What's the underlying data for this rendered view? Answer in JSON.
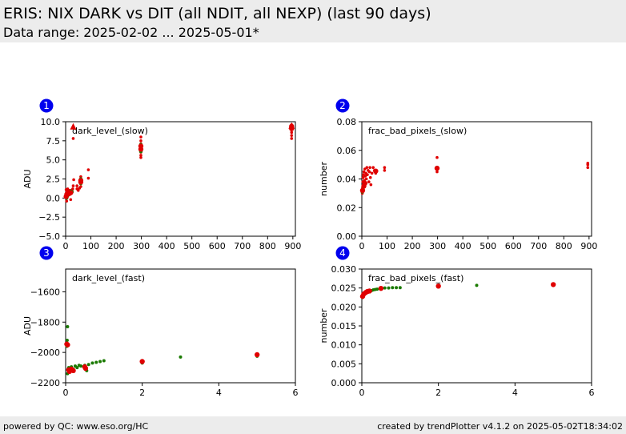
{
  "header": {
    "title": "ERIS: NIX DARK vs DIT (all NDIT, all NEXP) (last 90 days)",
    "subtitle": "Data range: 2025-02-02 ... 2025-05-01*"
  },
  "footer": {
    "left": "powered by QC: www.eso.org/HC",
    "right": "created by trendPlotter v4.1.2 on 2025-05-02T18:34:02"
  },
  "colors": {
    "red": "#e00000",
    "green": "#1a7a00",
    "badge": "#0000ee",
    "outlier": "#e00000"
  },
  "chart_data": [
    {
      "type": "scatter",
      "badge": "1",
      "title": "dark_level_(slow)",
      "ylabel": "ADU",
      "xlim": [
        0,
        910
      ],
      "ylim": [
        -5,
        10
      ],
      "xticks": [
        "0",
        "100",
        "200",
        "300",
        "400",
        "500",
        "600",
        "700",
        "800",
        "900"
      ],
      "xtick_values": [
        0,
        100,
        200,
        300,
        400,
        500,
        600,
        700,
        800,
        900
      ],
      "yticks": [
        "−5.0",
        "−2.5",
        "0.0",
        "2.5",
        "5.0",
        "7.5",
        "10.0"
      ],
      "ytick_values": [
        -5,
        -2.5,
        0,
        2.5,
        5,
        7.5,
        10
      ],
      "series": [
        {
          "color": "red",
          "size": 1.8,
          "points": [
            [
              2,
              1.1
            ],
            [
              3,
              0.4
            ],
            [
              4,
              -0.4
            ],
            [
              5,
              0.9
            ],
            [
              6,
              1.0
            ],
            [
              8,
              1.2
            ],
            [
              10,
              0.5
            ],
            [
              12,
              1.0
            ],
            [
              15,
              0.8
            ],
            [
              18,
              1.0
            ],
            [
              20,
              -0.2
            ],
            [
              22,
              0.6
            ],
            [
              25,
              1.0
            ],
            [
              28,
              1.2
            ],
            [
              30,
              1.6
            ],
            [
              32,
              2.4
            ],
            [
              30,
              7.8
            ],
            [
              30,
              9.2
            ],
            [
              45,
              1.6
            ],
            [
              45,
              1.2
            ],
            [
              50,
              1.0
            ],
            [
              55,
              1.3
            ],
            [
              60,
              1.5
            ],
            [
              60,
              2.0
            ],
            [
              60,
              2.5
            ],
            [
              60,
              2.8
            ],
            [
              90,
              2.6
            ],
            [
              90,
              3.7
            ],
            [
              298,
              5.3
            ],
            [
              298,
              5.6
            ],
            [
              298,
              6.0
            ],
            [
              298,
              6.6
            ],
            [
              298,
              7.1
            ],
            [
              298,
              7.5
            ],
            [
              298,
              8.0
            ],
            [
              895,
              7.8
            ],
            [
              895,
              8.2
            ],
            [
              895,
              8.6
            ],
            [
              895,
              9.0
            ],
            [
              895,
              9.3
            ],
            [
              895,
              9.6
            ]
          ]
        },
        {
          "color": "green",
          "size": 2.2,
          "points": [
            [
              2,
              0.1
            ],
            [
              3,
              0.5
            ],
            [
              4,
              0.0
            ],
            [
              6,
              0.2
            ],
            [
              10,
              0.4
            ],
            [
              15,
              0.6
            ],
            [
              20,
              0.9
            ],
            [
              25,
              0.8
            ],
            [
              60,
              1.9
            ],
            [
              60,
              2.2
            ],
            [
              60,
              2.5
            ],
            [
              298,
              6.1
            ],
            [
              298,
              6.6
            ],
            [
              298,
              7.0
            ]
          ]
        },
        {
          "color": "red",
          "size": 3.2,
          "points": [
            [
              2,
              0.2
            ],
            [
              5,
              0.5
            ],
            [
              10,
              0.8
            ],
            [
              15,
              0.6
            ],
            [
              20,
              0.7
            ],
            [
              60,
              2.1
            ],
            [
              60,
              2.3
            ],
            [
              298,
              6.4
            ],
            [
              298,
              6.8
            ],
            [
              895,
              9.1
            ],
            [
              895,
              9.4
            ]
          ]
        }
      ],
      "outliers": [
        [
          30,
          9.4
        ],
        [
          895,
          9.5
        ]
      ]
    },
    {
      "type": "scatter",
      "badge": "2",
      "title": "frac_bad_pixels_(slow)",
      "ylabel": "number",
      "xlim": [
        0,
        910
      ],
      "ylim": [
        0,
        0.08
      ],
      "xticks": [
        "0",
        "100",
        "200",
        "300",
        "400",
        "500",
        "600",
        "700",
        "800",
        "900"
      ],
      "xtick_values": [
        0,
        100,
        200,
        300,
        400,
        500,
        600,
        700,
        800,
        900
      ],
      "yticks": [
        "0.00",
        "0.02",
        "0.04",
        "0.06",
        "0.08"
      ],
      "ytick_values": [
        0,
        0.02,
        0.04,
        0.06,
        0.08
      ],
      "series": [
        {
          "color": "red",
          "size": 1.8,
          "points": [
            [
              2,
              0.03
            ],
            [
              3,
              0.034
            ],
            [
              4,
              0.038
            ],
            [
              5,
              0.041
            ],
            [
              6,
              0.043
            ],
            [
              8,
              0.045
            ],
            [
              10,
              0.039
            ],
            [
              12,
              0.047
            ],
            [
              14,
              0.042
            ],
            [
              16,
              0.044
            ],
            [
              18,
              0.04
            ],
            [
              20,
              0.048
            ],
            [
              22,
              0.043
            ],
            [
              25,
              0.046
            ],
            [
              28,
              0.038
            ],
            [
              30,
              0.045
            ],
            [
              32,
              0.048
            ],
            [
              34,
              0.041
            ],
            [
              36,
              0.036
            ],
            [
              40,
              0.044
            ],
            [
              45,
              0.048
            ],
            [
              50,
              0.046
            ],
            [
              55,
              0.044
            ],
            [
              90,
              0.046
            ],
            [
              90,
              0.048
            ],
            [
              298,
              0.045
            ],
            [
              298,
              0.047
            ],
            [
              298,
              0.055
            ],
            [
              895,
              0.048
            ],
            [
              895,
              0.05
            ],
            [
              895,
              0.051
            ]
          ]
        },
        {
          "color": "green",
          "size": 2.2,
          "points": [
            [
              2,
              0.031
            ],
            [
              4,
              0.033
            ],
            [
              6,
              0.035
            ],
            [
              10,
              0.036
            ],
            [
              15,
              0.037
            ],
            [
              55,
              0.045
            ],
            [
              298,
              0.048
            ]
          ]
        },
        {
          "color": "red",
          "size": 3.2,
          "points": [
            [
              3,
              0.032
            ],
            [
              8,
              0.035
            ],
            [
              12,
              0.037
            ],
            [
              55,
              0.0455
            ],
            [
              298,
              0.0475
            ]
          ]
        }
      ],
      "outliers": []
    },
    {
      "type": "scatter",
      "badge": "3",
      "title": "dark_level_(fast)",
      "ylabel": "ADU",
      "xlim": [
        0,
        6
      ],
      "ylim": [
        -2200,
        -1450
      ],
      "xticks": [
        "0",
        "2",
        "4",
        "6"
      ],
      "xtick_values": [
        0,
        2,
        4,
        6
      ],
      "yticks": [
        "−2200",
        "−2000",
        "−1800",
        "−1600"
      ],
      "ytick_values": [
        -2200,
        -2000,
        -1800,
        -1600
      ],
      "series": [
        {
          "color": "green",
          "size": 2.0,
          "points": [
            [
              0.03,
              -1960
            ],
            [
              0.04,
              -1920
            ],
            [
              0.05,
              -1830
            ],
            [
              0.05,
              -2140
            ],
            [
              0.08,
              -2100
            ],
            [
              0.1,
              -2110
            ],
            [
              0.15,
              -2095
            ],
            [
              0.2,
              -2110
            ],
            [
              0.25,
              -2090
            ],
            [
              0.3,
              -2100
            ],
            [
              0.35,
              -2085
            ],
            [
              0.4,
              -2090
            ],
            [
              0.5,
              -2085
            ],
            [
              0.55,
              -2120
            ],
            [
              0.6,
              -2080
            ],
            [
              0.7,
              -2070
            ],
            [
              0.8,
              -2065
            ],
            [
              0.9,
              -2060
            ],
            [
              1.0,
              -2055
            ],
            [
              2.0,
              -2070
            ],
            [
              3.0,
              -2030
            ],
            [
              5.0,
              -2025
            ]
          ]
        },
        {
          "color": "red",
          "size": 3.2,
          "points": [
            [
              0.03,
              -1945
            ],
            [
              0.05,
              -1950
            ],
            [
              0.08,
              -2115
            ],
            [
              0.1,
              -2125
            ],
            [
              0.15,
              -2110
            ],
            [
              0.2,
              -2120
            ],
            [
              0.5,
              -2095
            ],
            [
              0.52,
              -2105
            ],
            [
              2.0,
              -2060
            ],
            [
              5.0,
              -2015
            ]
          ]
        }
      ],
      "outliers": []
    },
    {
      "type": "scatter",
      "badge": "4",
      "title": "frac_bad_pixels_(fast)",
      "ylabel": "number",
      "xlim": [
        0,
        6
      ],
      "ylim": [
        0,
        0.03
      ],
      "xticks": [
        "0",
        "2",
        "4",
        "6"
      ],
      "xtick_values": [
        0,
        2,
        4,
        6
      ],
      "yticks": [
        "0.000",
        "0.005",
        "0.010",
        "0.015",
        "0.020",
        "0.025",
        "0.030"
      ],
      "ytick_values": [
        0,
        0.005,
        0.01,
        0.015,
        0.02,
        0.025,
        0.03
      ],
      "series": [
        {
          "color": "green",
          "size": 2.0,
          "points": [
            [
              0.02,
              0.0225
            ],
            [
              0.03,
              0.023
            ],
            [
              0.05,
              0.0232
            ],
            [
              0.08,
              0.0236
            ],
            [
              0.1,
              0.0238
            ],
            [
              0.15,
              0.024
            ],
            [
              0.2,
              0.0242
            ],
            [
              0.25,
              0.0243
            ],
            [
              0.3,
              0.0245
            ],
            [
              0.35,
              0.0246
            ],
            [
              0.4,
              0.0247
            ],
            [
              0.5,
              0.0249
            ],
            [
              0.6,
              0.025
            ],
            [
              0.7,
              0.025
            ],
            [
              0.8,
              0.0251
            ],
            [
              0.9,
              0.0251
            ],
            [
              1.0,
              0.0251
            ],
            [
              2.0,
              0.0257
            ],
            [
              3.0,
              0.0257
            ],
            [
              5.0,
              0.0259
            ]
          ]
        },
        {
          "color": "red",
          "size": 3.2,
          "points": [
            [
              0.02,
              0.0228
            ],
            [
              0.05,
              0.0234
            ],
            [
              0.1,
              0.0238
            ],
            [
              0.15,
              0.0241
            ],
            [
              0.2,
              0.0242
            ],
            [
              0.5,
              0.0249
            ],
            [
              2.0,
              0.0255
            ],
            [
              5.0,
              0.0259
            ]
          ]
        }
      ],
      "outliers": []
    }
  ]
}
